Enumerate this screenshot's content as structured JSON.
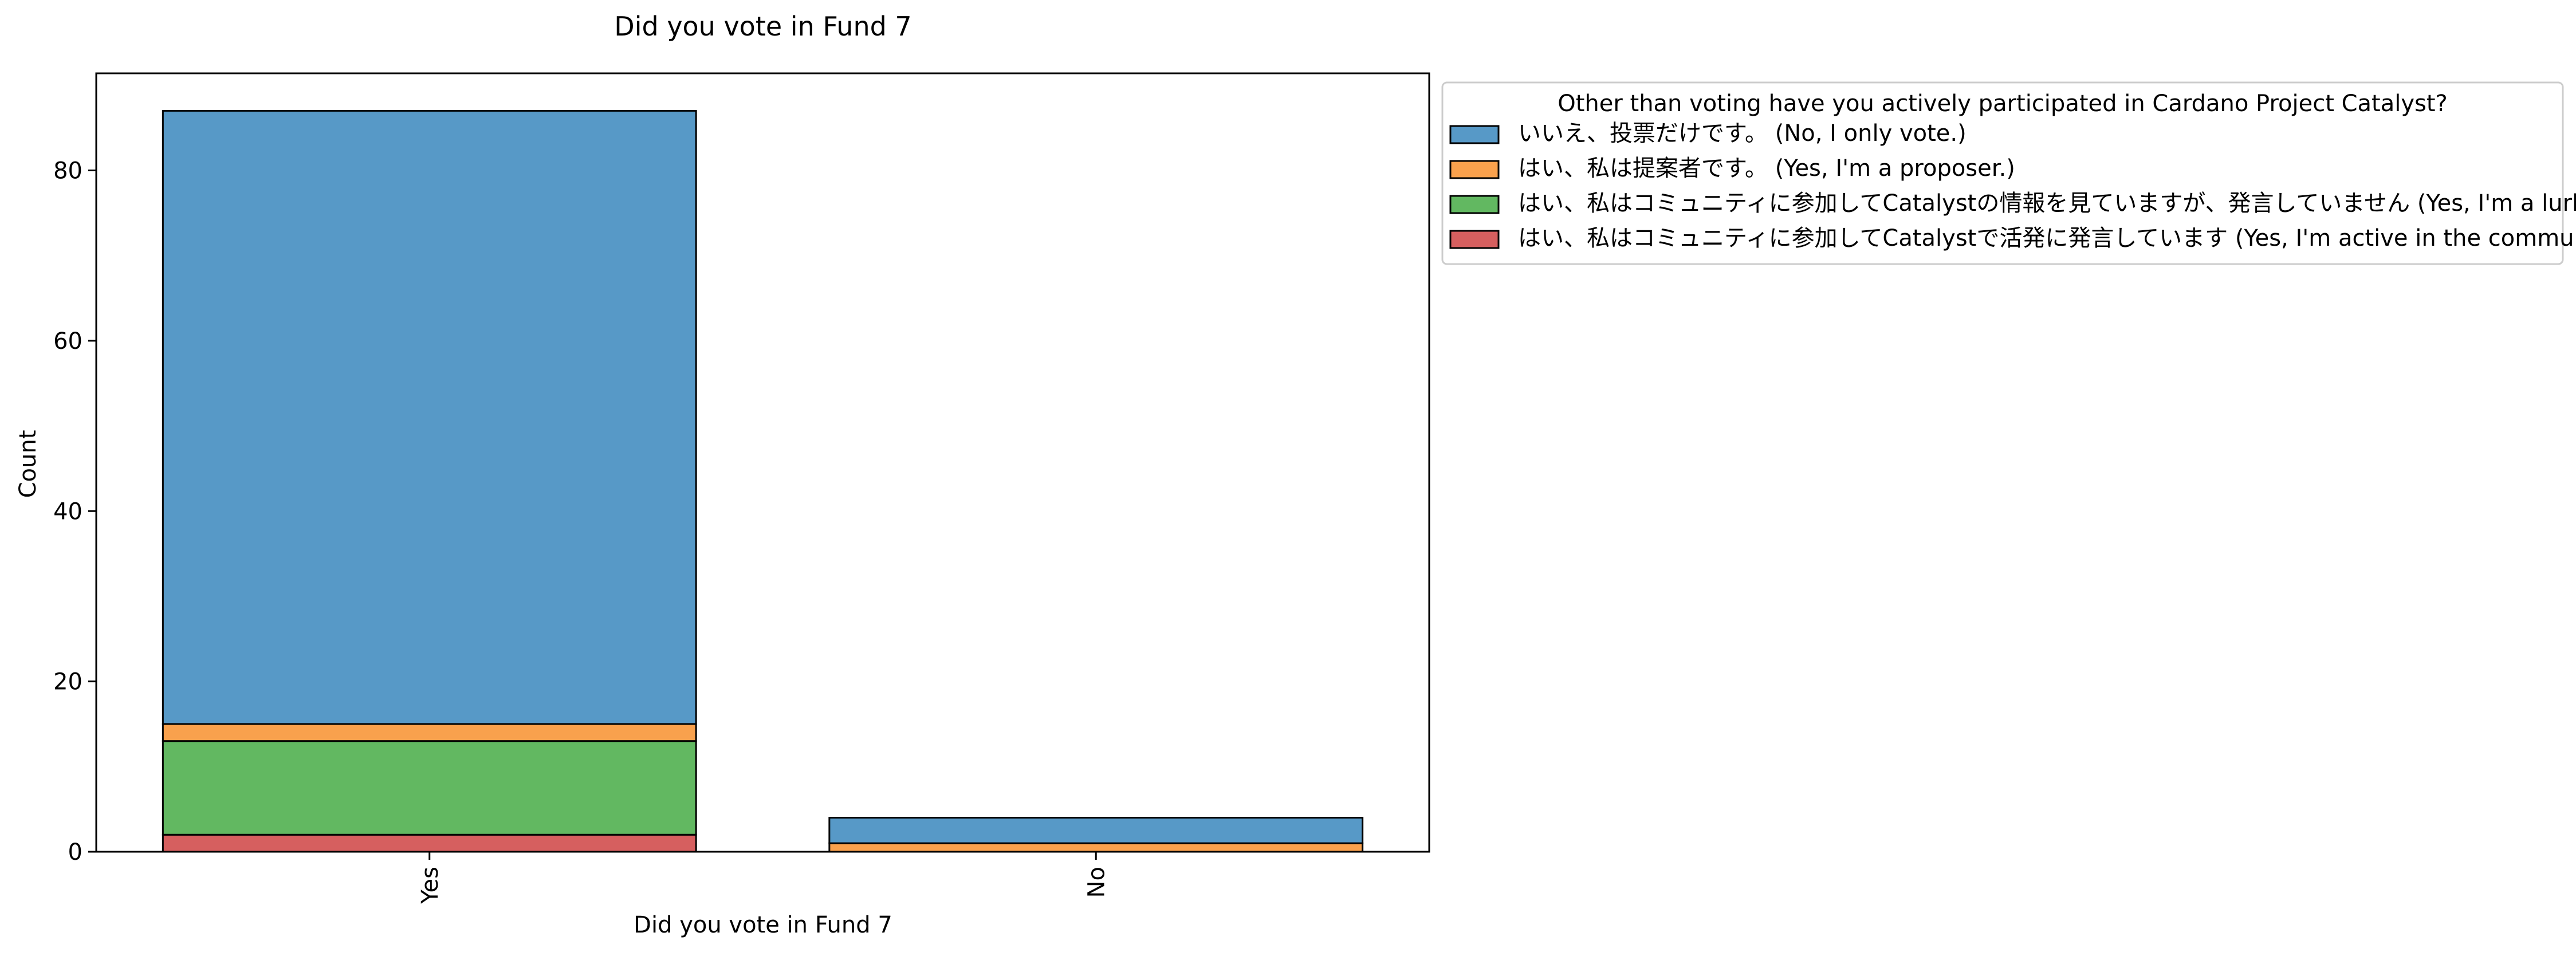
{
  "chart_data": {
    "type": "bar",
    "stacked": true,
    "title": "Did you vote in Fund 7",
    "xlabel": "Did you vote in Fund 7",
    "ylabel": "Count",
    "categories": [
      "Yes",
      "No"
    ],
    "ylim": [
      0,
      91.4
    ],
    "yticks": [
      0,
      20,
      40,
      60,
      80
    ],
    "grid": false,
    "legend_position": "outside-top-right",
    "legend_title": "Other than voting have you actively participated in Cardano Project Catalyst?",
    "series": [
      {
        "name": "いいえ、投票だけです。 (No, I only vote.)",
        "color": "#5799c7",
        "values": [
          72,
          3
        ]
      },
      {
        "name": "はい、私は提案者です。 (Yes, I'm a proposer.)",
        "color": "#f9a14d",
        "values": [
          2,
          1
        ]
      },
      {
        "name": "はい、私はコミュニティに参加してCatalystの情報を見ていますが、発言していません (Yes, I'm a lurker in the community)",
        "color": "#62b861",
        "values": [
          11,
          0
        ]
      },
      {
        "name": "はい、私はコミュニティに参加してCatalystで活発に発言しています (Yes, I'm active in the community.)",
        "color": "#d65f5f",
        "values": [
          2,
          0
        ]
      }
    ]
  }
}
